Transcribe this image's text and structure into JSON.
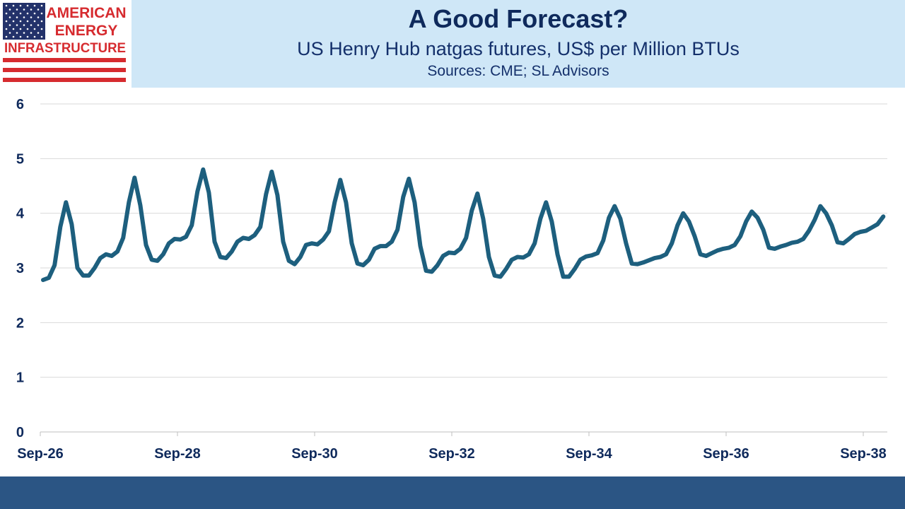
{
  "logo": {
    "lines": [
      "AMERICAN",
      "ENERGY",
      "INFRASTRUCTURE"
    ],
    "colors": {
      "red": "#d62b2f",
      "navy": "#23326a",
      "white": "#ffffff"
    }
  },
  "header": {
    "title": "A Good Forecast?",
    "subtitle": "US Henry Hub natgas futures, US$ per Million BTUs",
    "source": "Sources: CME; SL Advisors"
  },
  "colors": {
    "header_band": "#cfe7f7",
    "series_line": "#1d5f7e",
    "gridline": "#d9d9d9",
    "footer_band": "#2b5584"
  },
  "chart_data": {
    "type": "line",
    "title": "A Good Forecast?",
    "subtitle": "US Henry Hub natgas futures, US$ per Million BTUs",
    "xlabel": "",
    "ylabel": "",
    "ylim": [
      0,
      6
    ],
    "y_ticks": [
      "0",
      "1",
      "2",
      "3",
      "4",
      "5",
      "6"
    ],
    "x_ticks": [
      "Sep-26",
      "Sep-28",
      "Sep-30",
      "Sep-32",
      "Sep-34",
      "Sep-36",
      "Sep-38"
    ],
    "x_start": "Sep-26",
    "frequency": "monthly",
    "grid": true,
    "legend": "none",
    "series": [
      {
        "values": [
          2.78,
          2.82,
          3.05,
          3.75,
          4.2,
          3.8,
          3.0,
          2.86,
          2.86,
          3.0,
          3.18,
          3.25,
          3.22,
          3.3,
          3.55,
          4.2,
          4.65,
          4.15,
          3.42,
          3.15,
          3.13,
          3.25,
          3.45,
          3.53,
          3.52,
          3.57,
          3.78,
          4.4,
          4.8,
          4.38,
          3.48,
          3.2,
          3.18,
          3.3,
          3.48,
          3.55,
          3.53,
          3.6,
          3.75,
          4.35,
          4.76,
          4.33,
          3.48,
          3.13,
          3.07,
          3.2,
          3.42,
          3.45,
          3.43,
          3.52,
          3.67,
          4.2,
          4.61,
          4.2,
          3.45,
          3.08,
          3.05,
          3.15,
          3.35,
          3.4,
          3.4,
          3.48,
          3.7,
          4.3,
          4.63,
          4.2,
          3.4,
          2.95,
          2.93,
          3.05,
          3.22,
          3.28,
          3.27,
          3.35,
          3.55,
          4.05,
          4.36,
          3.9,
          3.2,
          2.86,
          2.84,
          2.98,
          3.15,
          3.2,
          3.19,
          3.25,
          3.45,
          3.9,
          4.2,
          3.85,
          3.25,
          2.84,
          2.84,
          2.98,
          3.15,
          3.21,
          3.23,
          3.27,
          3.5,
          3.92,
          4.13,
          3.9,
          3.45,
          3.08,
          3.07,
          3.1,
          3.14,
          3.18,
          3.2,
          3.25,
          3.45,
          3.78,
          4.0,
          3.85,
          3.58,
          3.25,
          3.22,
          3.27,
          3.32,
          3.35,
          3.37,
          3.42,
          3.58,
          3.85,
          4.03,
          3.92,
          3.7,
          3.37,
          3.35,
          3.39,
          3.42,
          3.46,
          3.48,
          3.53,
          3.68,
          3.88,
          4.13,
          4.0,
          3.78,
          3.47,
          3.45,
          3.53,
          3.62,
          3.66,
          3.68,
          3.74,
          3.8,
          3.94
        ]
      }
    ]
  }
}
